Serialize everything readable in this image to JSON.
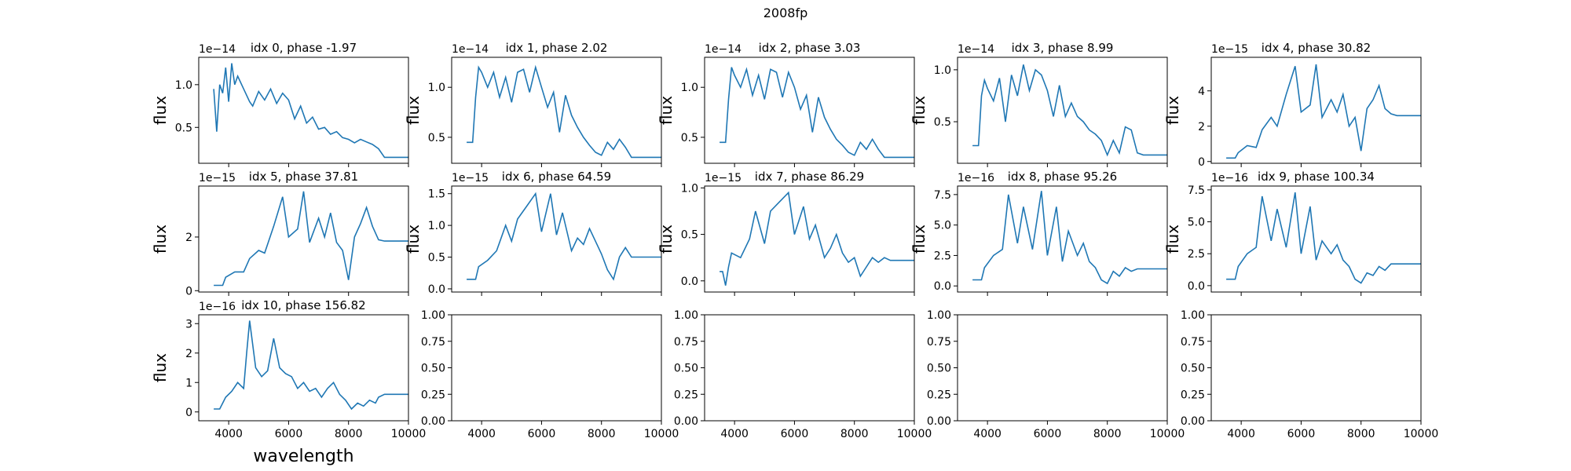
{
  "figure": {
    "suptitle": "2008fp"
  },
  "colors": {
    "line": "#1f77b4",
    "axes": "#000000",
    "background": "#ffffff"
  },
  "chart_data": {
    "type": "line",
    "rows": 3,
    "cols": 5,
    "xlim": [
      3000,
      10000
    ],
    "xticks": [
      4000,
      6000,
      8000,
      10000
    ],
    "xlabel": "wavelength",
    "ylabel": "flux",
    "empty_axes": {
      "ylim": [
        0,
        1
      ],
      "yticks": [
        0.0,
        0.25,
        0.5,
        0.75,
        1.0
      ],
      "tick_labels": [
        "0.00",
        "0.25",
        "0.50",
        "0.75",
        "1.00"
      ]
    },
    "panels": [
      {
        "title": "idx 0, phase -1.97",
        "offset_text": "1e−14",
        "ylim": [
          0.08,
          1.32
        ],
        "yticks": [
          0.5,
          1.0
        ],
        "ytick_labels": [
          "0.5",
          "1.0"
        ],
        "x": [
          3500,
          3600,
          3700,
          3800,
          3900,
          4000,
          4100,
          4200,
          4300,
          4500,
          4700,
          4800,
          5000,
          5200,
          5400,
          5600,
          5800,
          6000,
          6200,
          6400,
          6600,
          6800,
          7000,
          7200,
          7400,
          7600,
          7800,
          8000,
          8200,
          8400,
          8600,
          8800,
          9000,
          9200,
          10000
        ],
        "y": [
          0.95,
          0.45,
          1.0,
          0.9,
          1.2,
          0.8,
          1.25,
          1.0,
          1.1,
          0.95,
          0.8,
          0.75,
          0.92,
          0.82,
          0.95,
          0.78,
          0.9,
          0.82,
          0.6,
          0.75,
          0.55,
          0.62,
          0.48,
          0.5,
          0.42,
          0.45,
          0.38,
          0.36,
          0.32,
          0.36,
          0.33,
          0.3,
          0.25,
          0.15,
          0.15
        ]
      },
      {
        "title": "idx 1, phase 2.02",
        "offset_text": "1e−14",
        "ylim": [
          0.24,
          1.3
        ],
        "yticks": [
          0.5,
          1.0
        ],
        "ytick_labels": [
          "0.5",
          "1.0"
        ],
        "x": [
          3500,
          3700,
          3800,
          3900,
          4000,
          4200,
          4400,
          4600,
          4800,
          5000,
          5200,
          5400,
          5600,
          5800,
          6000,
          6200,
          6400,
          6600,
          6800,
          7000,
          7200,
          7400,
          7600,
          7800,
          8000,
          8200,
          8400,
          8600,
          8800,
          9000,
          9200,
          10000
        ],
        "y": [
          0.45,
          0.45,
          0.9,
          1.2,
          1.15,
          1.0,
          1.15,
          0.9,
          1.1,
          0.85,
          1.15,
          1.18,
          0.95,
          1.2,
          1.0,
          0.8,
          0.95,
          0.55,
          0.92,
          0.72,
          0.6,
          0.5,
          0.42,
          0.35,
          0.32,
          0.45,
          0.38,
          0.48,
          0.4,
          0.3,
          0.3,
          0.3
        ]
      },
      {
        "title": "idx 2, phase 3.03",
        "offset_text": "1e−14",
        "ylim": [
          0.24,
          1.3
        ],
        "yticks": [
          0.5,
          1.0
        ],
        "ytick_labels": [
          "0.5",
          "1.0"
        ],
        "x": [
          3500,
          3700,
          3800,
          3900,
          4000,
          4200,
          4400,
          4600,
          4800,
          5000,
          5200,
          5400,
          5600,
          5800,
          6000,
          6200,
          6400,
          6600,
          6800,
          7000,
          7200,
          7400,
          7600,
          7800,
          8000,
          8200,
          8400,
          8600,
          8800,
          9000,
          9200,
          10000
        ],
        "y": [
          0.45,
          0.45,
          0.88,
          1.2,
          1.12,
          1.0,
          1.18,
          0.92,
          1.12,
          0.88,
          1.18,
          1.15,
          0.9,
          1.15,
          1.0,
          0.78,
          0.92,
          0.55,
          0.9,
          0.7,
          0.58,
          0.48,
          0.42,
          0.35,
          0.32,
          0.45,
          0.38,
          0.48,
          0.38,
          0.3,
          0.3,
          0.3
        ]
      },
      {
        "title": "idx 3, phase 8.99",
        "offset_text": "1e−14",
        "ylim": [
          0.1,
          1.12
        ],
        "yticks": [
          0.5,
          1.0
        ],
        "ytick_labels": [
          "0.5",
          "1.0"
        ],
        "x": [
          3500,
          3700,
          3800,
          3900,
          4000,
          4200,
          4400,
          4600,
          4800,
          5000,
          5200,
          5400,
          5600,
          5800,
          6000,
          6200,
          6400,
          6600,
          6800,
          7000,
          7200,
          7400,
          7600,
          7800,
          8000,
          8200,
          8400,
          8600,
          8800,
          9000,
          9200,
          10000
        ],
        "y": [
          0.27,
          0.27,
          0.75,
          0.9,
          0.82,
          0.7,
          0.92,
          0.5,
          0.95,
          0.75,
          1.05,
          0.8,
          1.0,
          0.95,
          0.8,
          0.55,
          0.85,
          0.55,
          0.68,
          0.55,
          0.5,
          0.42,
          0.38,
          0.32,
          0.18,
          0.32,
          0.2,
          0.45,
          0.42,
          0.2,
          0.18,
          0.18
        ]
      },
      {
        "title": "idx 4, phase 30.82",
        "offset_text": "1e−15",
        "ylim": [
          -0.1,
          5.9
        ],
        "yticks": [
          0,
          2,
          4
        ],
        "ytick_labels": [
          "0",
          "2",
          "4"
        ],
        "x": [
          3500,
          3800,
          3900,
          4200,
          4500,
          4700,
          5000,
          5200,
          5500,
          5800,
          6000,
          6300,
          6500,
          6700,
          7000,
          7200,
          7400,
          7600,
          7800,
          8000,
          8200,
          8400,
          8600,
          8800,
          9000,
          9200,
          10000
        ],
        "y": [
          0.2,
          0.2,
          0.5,
          0.9,
          0.8,
          1.8,
          2.5,
          2.0,
          3.8,
          5.4,
          2.8,
          3.2,
          5.5,
          2.5,
          3.5,
          2.8,
          3.8,
          2.0,
          2.5,
          0.6,
          3.0,
          3.5,
          4.3,
          3.0,
          2.7,
          2.6,
          2.6
        ]
      },
      {
        "title": "idx 5, phase 37.81",
        "offset_text": "1e−15",
        "ylim": [
          -0.05,
          3.9
        ],
        "yticks": [
          0,
          2
        ],
        "ytick_labels": [
          "0",
          "2"
        ],
        "x": [
          3500,
          3800,
          3900,
          4200,
          4500,
          4700,
          5000,
          5200,
          5500,
          5800,
          6000,
          6300,
          6500,
          6700,
          7000,
          7200,
          7400,
          7600,
          7800,
          8000,
          8200,
          8400,
          8600,
          8800,
          9000,
          9200,
          10000
        ],
        "y": [
          0.2,
          0.2,
          0.5,
          0.7,
          0.7,
          1.2,
          1.5,
          1.4,
          2.4,
          3.5,
          2.0,
          2.3,
          3.7,
          1.8,
          2.7,
          2.0,
          2.9,
          1.8,
          1.5,
          0.4,
          2.0,
          2.5,
          3.1,
          2.4,
          1.9,
          1.85,
          1.85
        ]
      },
      {
        "title": "idx 6, phase 64.59",
        "offset_text": "1e−15",
        "ylim": [
          -0.05,
          1.62
        ],
        "yticks": [
          0.0,
          0.5,
          1.0,
          1.5
        ],
        "ytick_labels": [
          "0.0",
          "0.5",
          "1.0",
          "1.5"
        ],
        "x": [
          3500,
          3800,
          3900,
          4200,
          4500,
          4800,
          5000,
          5200,
          5500,
          5800,
          6000,
          6300,
          6500,
          6700,
          7000,
          7200,
          7400,
          7600,
          7800,
          8000,
          8200,
          8400,
          8600,
          8800,
          9000,
          9200,
          10000
        ],
        "y": [
          0.15,
          0.15,
          0.35,
          0.45,
          0.6,
          1.0,
          0.75,
          1.1,
          1.3,
          1.5,
          0.9,
          1.5,
          0.85,
          1.2,
          0.6,
          0.8,
          0.7,
          0.95,
          0.75,
          0.55,
          0.3,
          0.15,
          0.5,
          0.65,
          0.5,
          0.5,
          0.5
        ]
      },
      {
        "title": "idx 7, phase 86.29",
        "offset_text": "1e−15",
        "ylim": [
          -0.12,
          1.02
        ],
        "yticks": [
          0.0,
          0.5,
          1.0
        ],
        "ytick_labels": [
          "0.0",
          "0.5",
          "1.0"
        ],
        "x": [
          3500,
          3600,
          3700,
          3800,
          3900,
          4200,
          4500,
          4700,
          5000,
          5200,
          5500,
          5800,
          6000,
          6300,
          6500,
          6700,
          7000,
          7200,
          7400,
          7600,
          7800,
          8000,
          8200,
          8400,
          8600,
          8800,
          9000,
          9200,
          10000
        ],
        "y": [
          0.1,
          0.1,
          -0.05,
          0.15,
          0.3,
          0.25,
          0.45,
          0.75,
          0.4,
          0.75,
          0.85,
          0.95,
          0.5,
          0.8,
          0.45,
          0.6,
          0.25,
          0.35,
          0.5,
          0.3,
          0.2,
          0.25,
          0.05,
          0.15,
          0.25,
          0.2,
          0.25,
          0.22,
          0.22
        ]
      },
      {
        "title": "idx 8, phase 95.26",
        "offset_text": "1e−16",
        "ylim": [
          -0.5,
          8.2
        ],
        "yticks": [
          0.0,
          2.5,
          5.0,
          7.5
        ],
        "ytick_labels": [
          "0.0",
          "2.5",
          "5.0",
          "7.5"
        ],
        "x": [
          3500,
          3800,
          3900,
          4200,
          4500,
          4700,
          5000,
          5200,
          5500,
          5800,
          6000,
          6300,
          6500,
          6700,
          7000,
          7200,
          7400,
          7600,
          7800,
          8000,
          8200,
          8400,
          8600,
          8800,
          9000,
          9200,
          10000
        ],
        "y": [
          0.5,
          0.5,
          1.5,
          2.5,
          3.0,
          7.5,
          3.5,
          6.5,
          3.0,
          7.8,
          2.5,
          6.5,
          2.0,
          4.5,
          2.5,
          3.5,
          2.0,
          1.5,
          0.5,
          0.2,
          1.2,
          0.8,
          1.5,
          1.2,
          1.4,
          1.4,
          1.4
        ]
      },
      {
        "title": "idx 9, phase 100.34",
        "offset_text": "1e−16",
        "ylim": [
          -0.5,
          7.8
        ],
        "yticks": [
          0.0,
          2.5,
          5.0,
          7.5
        ],
        "ytick_labels": [
          "0.0",
          "2.5",
          "5.0",
          "7.5"
        ],
        "x": [
          3500,
          3800,
          3900,
          4200,
          4500,
          4700,
          5000,
          5200,
          5500,
          5800,
          6000,
          6300,
          6500,
          6700,
          7000,
          7200,
          7400,
          7600,
          7800,
          8000,
          8200,
          8400,
          8600,
          8800,
          9000,
          9200,
          10000
        ],
        "y": [
          0.5,
          0.5,
          1.5,
          2.5,
          3.0,
          7.0,
          3.5,
          6.0,
          3.0,
          7.3,
          2.5,
          6.2,
          2.0,
          3.5,
          2.5,
          3.2,
          2.0,
          1.5,
          0.5,
          0.2,
          1.0,
          0.8,
          1.5,
          1.2,
          1.7,
          1.7,
          1.7
        ]
      },
      {
        "title": "idx 10, phase 156.82",
        "offset_text": "1e−16",
        "ylim": [
          -0.3,
          3.3
        ],
        "yticks": [
          0,
          1,
          2,
          3
        ],
        "ytick_labels": [
          "0",
          "1",
          "2",
          "3"
        ],
        "x": [
          3500,
          3700,
          3800,
          3900,
          4100,
          4300,
          4500,
          4600,
          4700,
          4900,
          5100,
          5300,
          5500,
          5700,
          5900,
          6100,
          6300,
          6500,
          6700,
          6900,
          7100,
          7300,
          7500,
          7700,
          7900,
          8100,
          8300,
          8500,
          8700,
          8900,
          9000,
          9200,
          10000
        ],
        "y": [
          0.1,
          0.1,
          0.3,
          0.5,
          0.7,
          1.0,
          0.8,
          2.0,
          3.1,
          1.5,
          1.2,
          1.4,
          2.5,
          1.5,
          1.3,
          1.2,
          0.8,
          1.0,
          0.7,
          0.8,
          0.5,
          0.8,
          1.0,
          0.6,
          0.4,
          0.1,
          0.3,
          0.2,
          0.4,
          0.3,
          0.5,
          0.6,
          0.6
        ]
      }
    ]
  }
}
